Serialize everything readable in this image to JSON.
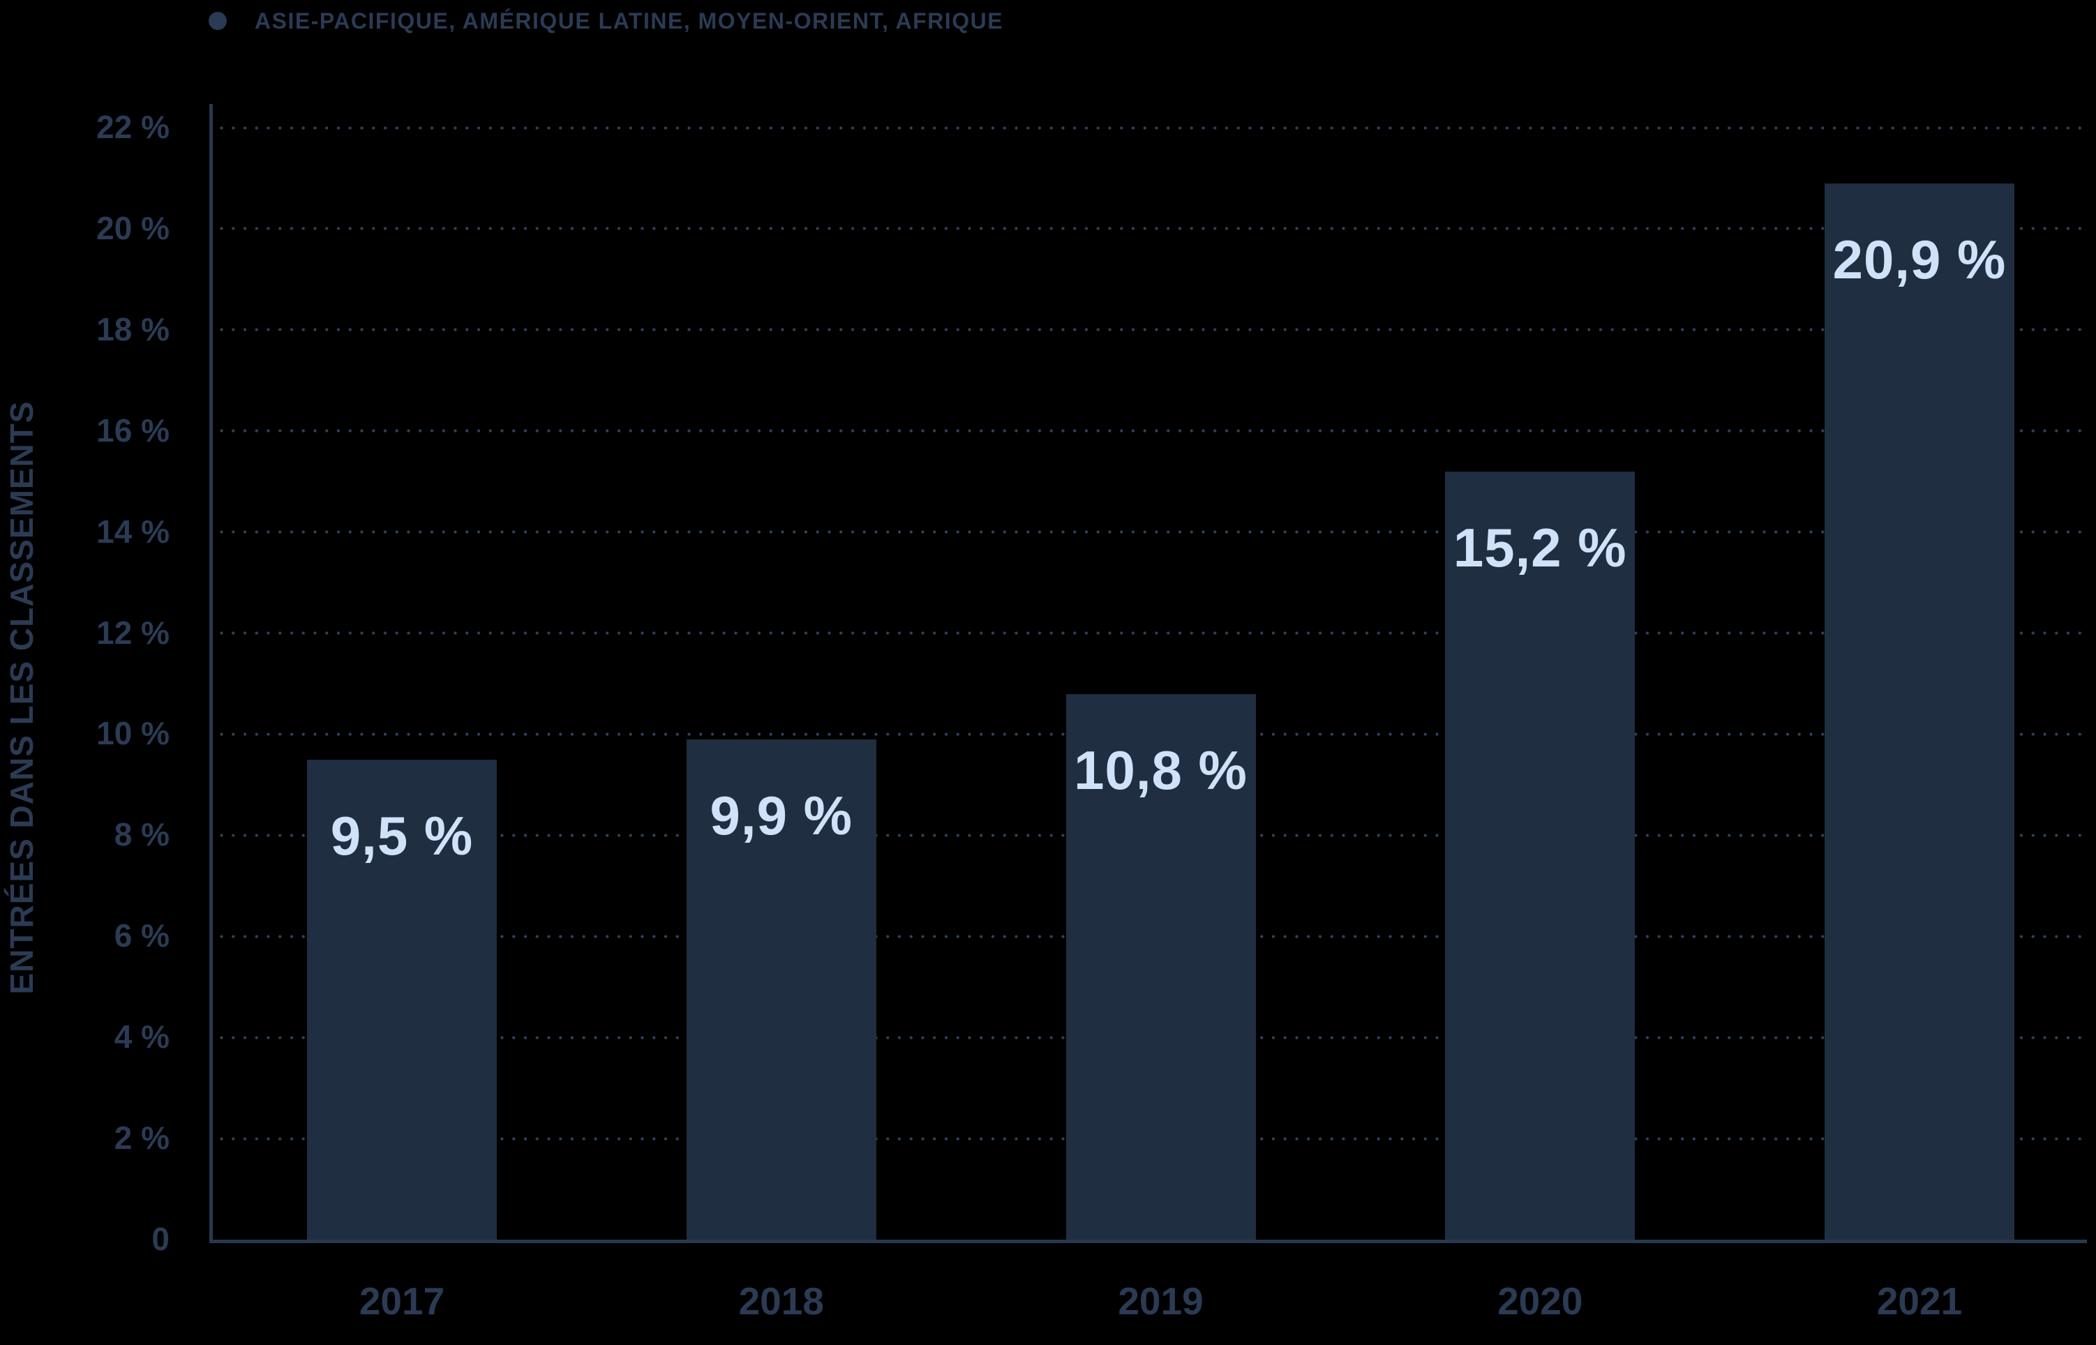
{
  "legend": {
    "marker": "dot",
    "label": "ASIE-PACIFIQUE, AMÉRIQUE LATINE, MOYEN-ORIENT, AFRIQUE"
  },
  "y_axis": {
    "title": "ENTRÉES DANS LES CLASSEMENTS"
  },
  "colors": {
    "background": "#000000",
    "bar": "#202e41",
    "value_label": "#cfe2f8",
    "axis_text": "#2b3b54",
    "grid_dot": "#31425c",
    "axis_line": "#283850"
  },
  "chart_data": {
    "type": "bar",
    "title": "",
    "xlabel": "",
    "ylabel": "ENTRÉES DANS LES CLASSEMENTS",
    "categories": [
      "2017",
      "2018",
      "2019",
      "2020",
      "2021"
    ],
    "values": [
      9.5,
      9.9,
      10.8,
      15.2,
      20.9
    ],
    "value_labels": [
      "9,5 %",
      "9,9 %",
      "10,8 %",
      "15,2 %",
      "20,9 %"
    ],
    "series_name": "ASIE-PACIFIQUE, AMÉRIQUE LATINE, MOYEN-ORIENT, AFRIQUE",
    "ylim": [
      0,
      22
    ],
    "yticks": [
      {
        "value": 0,
        "label": "0"
      },
      {
        "value": 2,
        "label": "2 %"
      },
      {
        "value": 4,
        "label": "4 %"
      },
      {
        "value": 6,
        "label": "6 %"
      },
      {
        "value": 8,
        "label": "8 %"
      },
      {
        "value": 10,
        "label": "10 %"
      },
      {
        "value": 12,
        "label": "12 %"
      },
      {
        "value": 14,
        "label": "14 %"
      },
      {
        "value": 16,
        "label": "16 %"
      },
      {
        "value": 18,
        "label": "18 %"
      },
      {
        "value": 20,
        "label": "20 %"
      },
      {
        "value": 22,
        "label": "22 %"
      }
    ],
    "grid": "dotted-horizontal",
    "legend_position": "top-left"
  }
}
